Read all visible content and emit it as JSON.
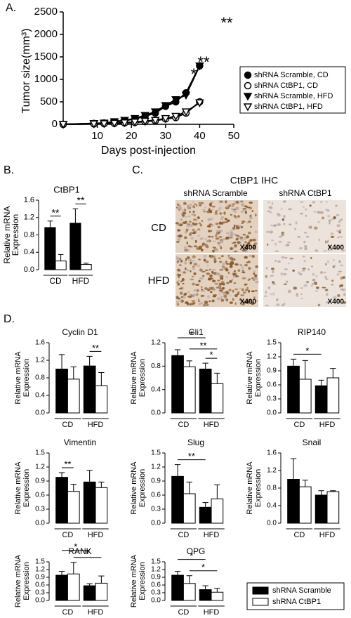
{
  "panel_labels": [
    "A.",
    "B.",
    "C.",
    "D."
  ],
  "ihc": {
    "title": "CtBP1 IHC",
    "columns": [
      "shRNA Scramble",
      "shRNA CtBP1"
    ],
    "rows": [
      "CD",
      "HFD"
    ],
    "magnification": "X400"
  },
  "chart_data": [
    {
      "type": "line",
      "x_label": "Days post-injection",
      "y_label": "Tumor size(mm³)",
      "x": [
        0,
        9,
        12,
        15,
        18,
        21,
        24,
        27,
        30,
        33,
        36,
        40
      ],
      "xlim": [
        0,
        50
      ],
      "xticks": [
        10,
        20,
        30,
        40,
        50
      ],
      "ylim": [
        0,
        2500
      ],
      "yticks": [
        0,
        500,
        1000,
        1500,
        2000,
        2500
      ],
      "series": [
        {
          "name": "shRNA Scramble, CD",
          "color": "#000000",
          "marker": "circle",
          "filled": true,
          "values": [
            0,
            20,
            30,
            50,
            80,
            120,
            180,
            250,
            400,
            500,
            700,
            1300
          ]
        },
        {
          "name": "shRNA CtBP1, CD",
          "color": "#000000",
          "marker": "circle",
          "filled": false,
          "values": [
            0,
            10,
            15,
            20,
            30,
            40,
            60,
            80,
            120,
            150,
            250,
            500
          ]
        },
        {
          "name": "shRNA Scramble, HFD",
          "color": "#000000",
          "marker": "triangle-down",
          "filled": true,
          "values": [
            0,
            20,
            30,
            60,
            90,
            130,
            200,
            280,
            420,
            550,
            650,
            1300
          ]
        },
        {
          "name": "shRNA CtBP1, HFD",
          "color": "#000000",
          "marker": "triangle-down",
          "filled": false,
          "values": [
            0,
            10,
            15,
            25,
            35,
            50,
            70,
            90,
            130,
            180,
            280,
            480
          ]
        }
      ],
      "annotations": [
        "*",
        "**",
        "**"
      ]
    },
    {
      "type": "bar",
      "title": "CtBP1",
      "y_label": [
        "Relative mRNA",
        "Expression"
      ],
      "categories": [
        "CD",
        "HFD"
      ],
      "ylim": [
        0,
        1.6
      ],
      "yticks": [
        {
          "value": 0,
          "label": "0.0"
        },
        0.4,
        0.8,
        1.2,
        1.6
      ],
      "series": [
        {
          "color": "#000000",
          "values": [
            0.97,
            1.07
          ],
          "errors": [
            0.15,
            0.33
          ]
        },
        {
          "color": "#ffffff",
          "values": [
            0.2,
            0.12
          ],
          "errors": [
            0.15,
            0.03
          ]
        }
      ],
      "significance": [
        {
          "bars": [
            0,
            1
          ],
          "label": "**"
        },
        {
          "bars": [
            2,
            3
          ],
          "label": "**"
        }
      ]
    },
    {
      "type": "bar",
      "title": "Cyclin D1",
      "y_label": [
        "Relative mRNA",
        "Expression"
      ],
      "categories": [
        "CD",
        "HFD"
      ],
      "ylim": [
        0,
        1.6
      ],
      "yticks": [
        {
          "value": 0,
          "label": "0.0"
        },
        0.4,
        0.8,
        1.2,
        1.6
      ],
      "series": [
        {
          "color": "#000000",
          "values": [
            1.0,
            1.07
          ],
          "errors": [
            0.33,
            0.22
          ]
        },
        {
          "color": "#ffffff",
          "values": [
            0.77,
            0.62
          ],
          "errors": [
            0.28,
            0.3
          ]
        }
      ],
      "significance": [
        {
          "bars": [
            2,
            3
          ],
          "label": "**"
        }
      ]
    },
    {
      "type": "bar",
      "title": "Gli1",
      "y_label": [
        "Relative mRNA",
        "Expression"
      ],
      "categories": [
        "CD",
        "HFD"
      ],
      "ylim": [
        0,
        1.2
      ],
      "yticks": [
        {
          "value": 0,
          "label": "0.0"
        },
        0.4,
        0.8,
        1.2
      ],
      "series": [
        {
          "color": "#000000",
          "values": [
            0.98,
            0.75
          ],
          "errors": [
            0.1,
            0.1
          ]
        },
        {
          "color": "#ffffff",
          "values": [
            0.79,
            0.5
          ],
          "errors": [
            0.1,
            0.18
          ]
        }
      ],
      "significance": [
        {
          "bars": [
            2,
            3
          ],
          "label": "*"
        },
        {
          "bars": [
            1,
            3
          ],
          "label": "**"
        },
        {
          "bars": [
            0,
            2
          ],
          "label": "*"
        }
      ]
    },
    {
      "type": "bar",
      "title": "RIP140",
      "y_label": [
        "Relative mRNA",
        "Expression"
      ],
      "categories": [
        "CD",
        "HFD"
      ],
      "ylim": [
        0,
        1.5
      ],
      "yticks": [
        {
          "value": 0,
          "label": "0.0"
        },
        0.3,
        0.6,
        0.9,
        1.2,
        1.5
      ],
      "series": [
        {
          "color": "#000000",
          "values": [
            1.0,
            0.58
          ],
          "errors": [
            0.15,
            0.12
          ]
        },
        {
          "color": "#ffffff",
          "values": [
            0.72,
            0.75
          ],
          "errors": [
            0.4,
            0.2
          ]
        }
      ],
      "significance": [
        {
          "bars": [
            0,
            2
          ],
          "label": "*"
        }
      ]
    },
    {
      "type": "bar",
      "title": "Vimentin",
      "y_label": [
        "Relative mRNA",
        "Expression"
      ],
      "categories": [
        "CD",
        "HFD"
      ],
      "ylim": [
        0,
        1.5
      ],
      "yticks": [
        {
          "value": 0,
          "label": "0.0"
        },
        0.3,
        0.6,
        0.9,
        1.2,
        1.5
      ],
      "series": [
        {
          "color": "#000000",
          "values": [
            0.98,
            0.88
          ],
          "errors": [
            0.1,
            0.25
          ]
        },
        {
          "color": "#ffffff",
          "values": [
            0.68,
            0.76
          ],
          "errors": [
            0.15,
            0.12
          ]
        }
      ],
      "significance": [
        {
          "bars": [
            0,
            1
          ],
          "label": "**"
        }
      ]
    },
    {
      "type": "bar",
      "title": "Slug",
      "y_label": [
        "Relative mRNA",
        "Expression"
      ],
      "categories": [
        "CD",
        "HFD"
      ],
      "ylim": [
        0,
        1.5
      ],
      "yticks": [
        {
          "value": 0,
          "label": "0.0"
        },
        0.3,
        0.6,
        0.9,
        1.2,
        1.5
      ],
      "series": [
        {
          "color": "#000000",
          "values": [
            1.0,
            0.34
          ],
          "errors": [
            0.25,
            0.1
          ]
        },
        {
          "color": "#ffffff",
          "values": [
            0.63,
            0.52
          ],
          "errors": [
            0.25,
            0.3
          ]
        }
      ],
      "significance": [
        {
          "bars": [
            0,
            2
          ],
          "label": "**"
        }
      ]
    },
    {
      "type": "bar",
      "title": "Snail",
      "y_label": [
        "Relative mRNA",
        "Expression"
      ],
      "categories": [
        "CD",
        "HFD"
      ],
      "ylim": [
        0,
        1.6
      ],
      "yticks": [
        {
          "value": 0,
          "label": "0.0"
        },
        0.4,
        0.8,
        1.2,
        1.6
      ],
      "series": [
        {
          "color": "#000000",
          "values": [
            1.0,
            0.64
          ],
          "errors": [
            0.47,
            0.1
          ]
        },
        {
          "color": "#ffffff",
          "values": [
            0.83,
            0.72
          ],
          "errors": [
            0.15,
            0.02
          ]
        }
      ],
      "significance": []
    },
    {
      "type": "bar",
      "title": "RANK",
      "y_label": [
        "Relative mRNA",
        "Expression"
      ],
      "categories": [
        "CD",
        "HFD"
      ],
      "ylim": [
        0,
        1.5
      ],
      "yticks": [
        {
          "value": 0,
          "label": "0.0"
        },
        0.3,
        0.6,
        0.9,
        1.2,
        1.5
      ],
      "series": [
        {
          "color": "#000000",
          "values": [
            0.98,
            0.57
          ],
          "errors": [
            0.15,
            0.08
          ]
        },
        {
          "color": "#ffffff",
          "values": [
            1.03,
            0.67
          ],
          "errors": [
            0.45,
            0.28
          ]
        }
      ],
      "significance": [
        {
          "bars": [
            1,
            3
          ],
          "label": "*"
        },
        {
          "bars": [
            0,
            2
          ],
          "label": "*"
        }
      ]
    },
    {
      "type": "bar",
      "title": "OPG",
      "y_label": [
        "Relative mRNA",
        "Expression"
      ],
      "categories": [
        "CD",
        "HFD"
      ],
      "ylim": [
        0,
        1.5
      ],
      "yticks": [
        {
          "value": 0,
          "label": "0.0"
        },
        0.3,
        0.6,
        0.9,
        1.2,
        1.5
      ],
      "series": [
        {
          "name": "shRNA Scramble",
          "color": "#000000",
          "values": [
            0.98,
            0.42
          ],
          "errors": [
            0.15,
            0.15
          ]
        },
        {
          "name": "shRNA CtBP1",
          "color": "#ffffff",
          "values": [
            0.66,
            0.32
          ],
          "errors": [
            0.3,
            0.15
          ]
        }
      ],
      "significance": [
        {
          "bars": [
            1,
            3
          ],
          "label": "*"
        },
        {
          "bars": [
            0,
            2
          ],
          "label": "*"
        }
      ]
    }
  ]
}
